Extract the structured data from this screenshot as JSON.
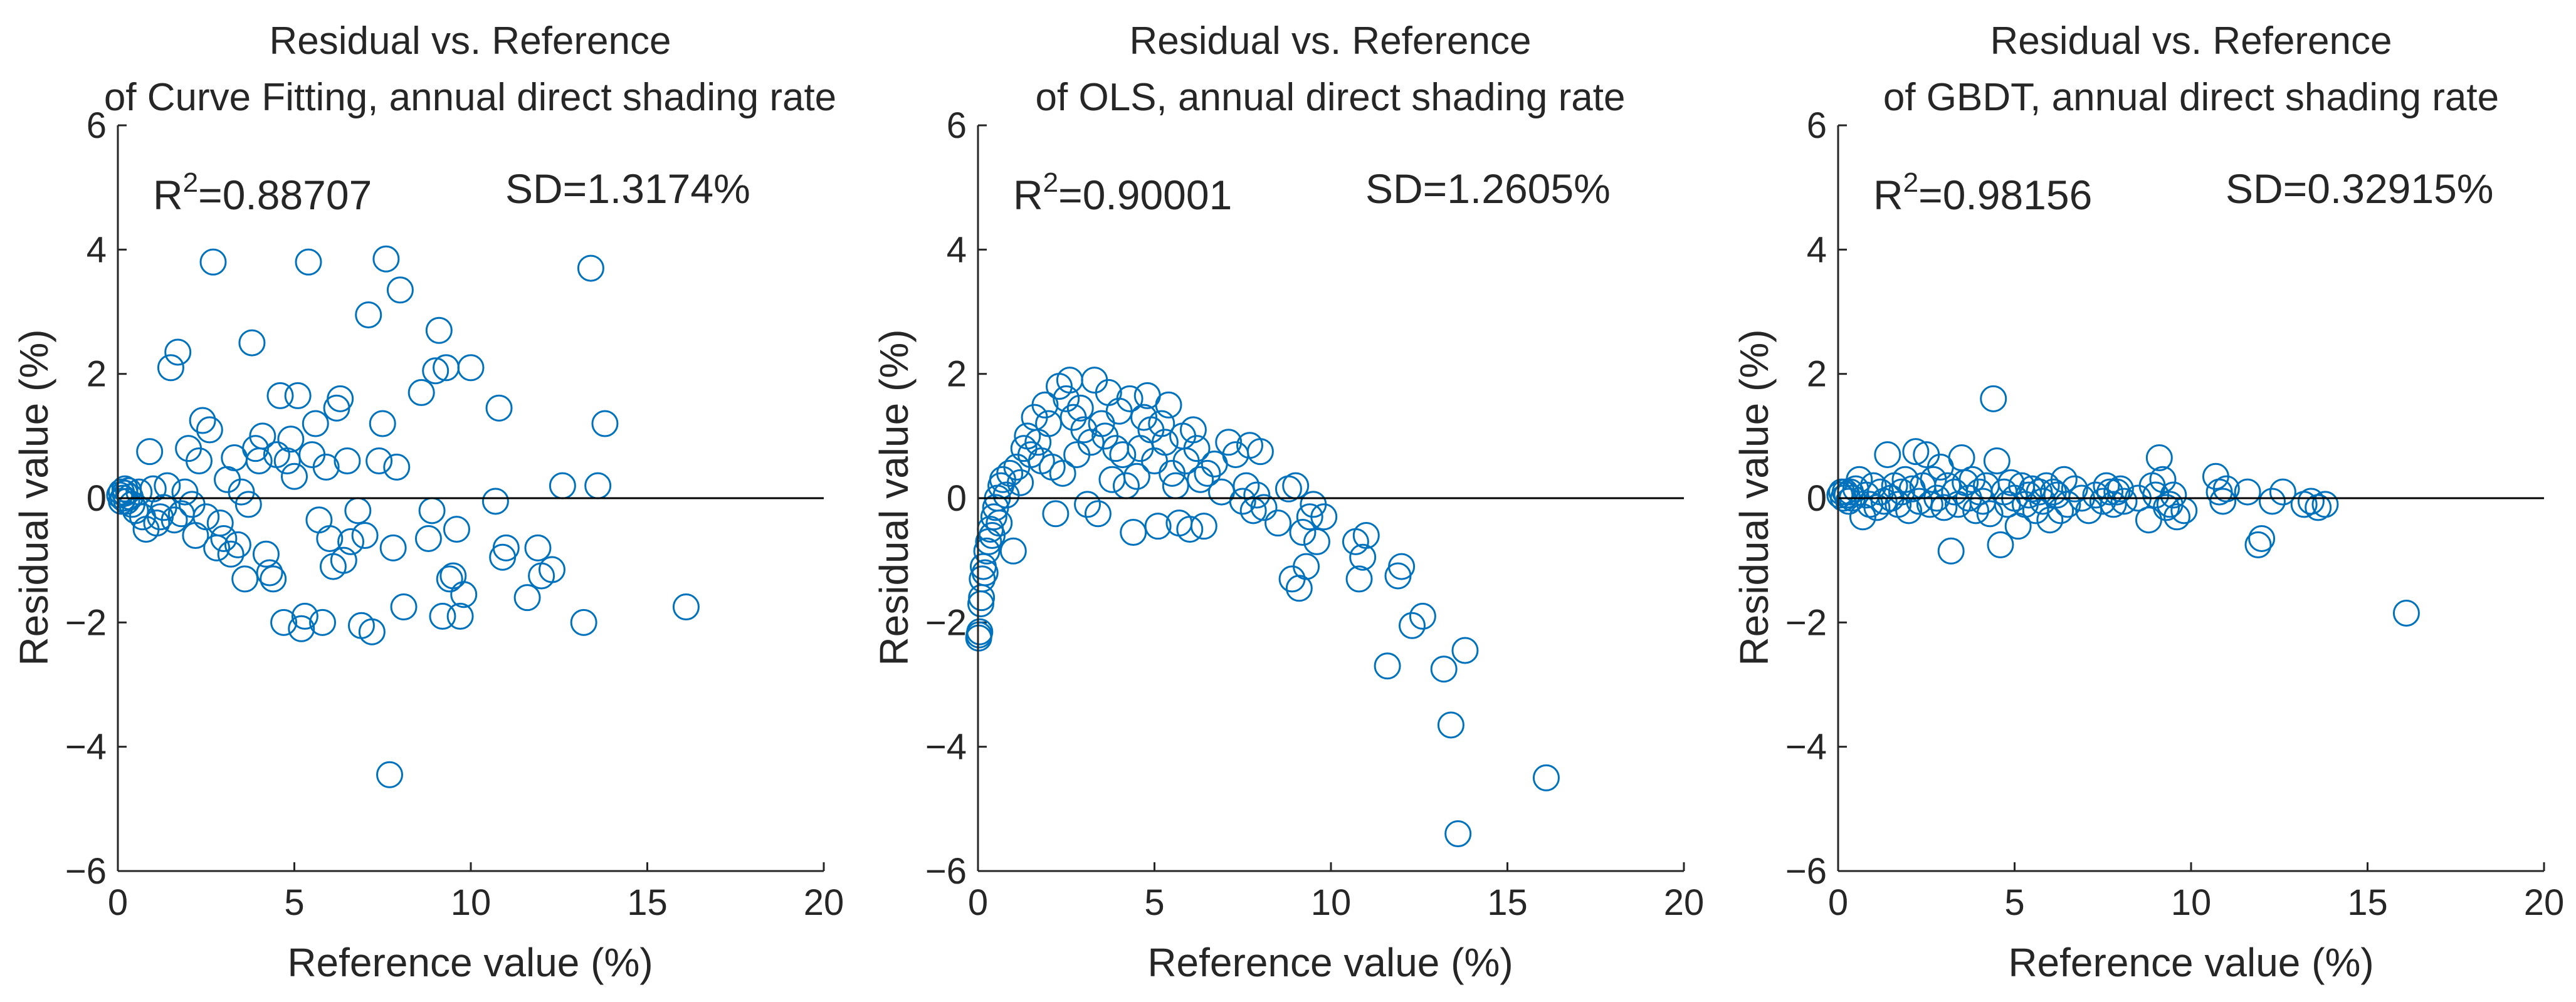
{
  "figure": {
    "marker_color": "#0072BD",
    "axis_color": "#262626",
    "zero_line_color": "#000000"
  },
  "chart_data": [
    {
      "type": "scatter",
      "title_line1": "Residual vs. Reference",
      "title_line2": "of Curve Fitting, annual direct shading rate",
      "xlabel": "Reference value (%)",
      "ylabel": "Residual value (%)",
      "xlim": [
        0,
        20
      ],
      "ylim": [
        -6,
        6
      ],
      "xticks": [
        0,
        5,
        10,
        15,
        20
      ],
      "yticks": [
        -6,
        -4,
        -2,
        0,
        2,
        4,
        6
      ],
      "xtick_labels": [
        "0",
        "5",
        "10",
        "15",
        "20"
      ],
      "ytick_labels": [
        "−6",
        "−4",
        "−2",
        "0",
        "2",
        "4",
        "6"
      ],
      "r2_label": "R",
      "r2_sup": "2",
      "r2_value": "=0.88707",
      "sd_label": "SD=1.3174%",
      "points": [
        [
          0.05,
          0.05
        ],
        [
          0.1,
          0.1
        ],
        [
          0.15,
          0.0
        ],
        [
          0.2,
          0.08
        ],
        [
          0.25,
          -0.05
        ],
        [
          0.3,
          0.12
        ],
        [
          0.35,
          0.02
        ],
        [
          0.4,
          -0.1
        ],
        [
          0.1,
          -0.05
        ],
        [
          0.2,
          0.15
        ],
        [
          0.5,
          -0.2
        ],
        [
          0.6,
          0.1
        ],
        [
          0.7,
          -0.3
        ],
        [
          0.8,
          -0.5
        ],
        [
          0.9,
          0.75
        ],
        [
          1.0,
          0.15
        ],
        [
          1.1,
          -0.4
        ],
        [
          1.2,
          -0.3
        ],
        [
          1.3,
          -0.15
        ],
        [
          1.4,
          0.2
        ],
        [
          1.5,
          2.1
        ],
        [
          1.6,
          -0.35
        ],
        [
          1.7,
          2.35
        ],
        [
          1.8,
          -0.25
        ],
        [
          1.9,
          0.1
        ],
        [
          2.0,
          0.8
        ],
        [
          2.1,
          -0.1
        ],
        [
          2.2,
          -0.6
        ],
        [
          2.3,
          0.6
        ],
        [
          2.4,
          1.25
        ],
        [
          2.5,
          -0.3
        ],
        [
          2.6,
          1.1
        ],
        [
          2.7,
          3.8
        ],
        [
          2.8,
          -0.8
        ],
        [
          2.9,
          -0.4
        ],
        [
          3.0,
          -0.65
        ],
        [
          3.1,
          0.3
        ],
        [
          3.2,
          -0.9
        ],
        [
          3.3,
          0.65
        ],
        [
          3.4,
          -0.75
        ],
        [
          3.5,
          0.1
        ],
        [
          3.6,
          -1.3
        ],
        [
          3.7,
          -0.1
        ],
        [
          3.8,
          2.5
        ],
        [
          3.9,
          0.8
        ],
        [
          4.0,
          0.6
        ],
        [
          4.1,
          1.0
        ],
        [
          4.2,
          -0.9
        ],
        [
          4.3,
          -1.2
        ],
        [
          4.4,
          -1.3
        ],
        [
          4.5,
          0.7
        ],
        [
          4.6,
          1.65
        ],
        [
          4.7,
          -2.0
        ],
        [
          4.8,
          0.6
        ],
        [
          4.9,
          0.95
        ],
        [
          5.0,
          0.35
        ],
        [
          5.1,
          1.65
        ],
        [
          5.2,
          -2.1
        ],
        [
          5.3,
          -1.9
        ],
        [
          5.4,
          3.8
        ],
        [
          5.5,
          0.7
        ],
        [
          5.6,
          1.2
        ],
        [
          5.7,
          -0.35
        ],
        [
          5.8,
          -2.0
        ],
        [
          5.9,
          0.5
        ],
        [
          6.0,
          -0.65
        ],
        [
          6.1,
          -1.1
        ],
        [
          6.2,
          1.45
        ],
        [
          6.3,
          1.6
        ],
        [
          6.4,
          -1.0
        ],
        [
          6.5,
          0.6
        ],
        [
          6.6,
          -0.7
        ],
        [
          6.8,
          -0.2
        ],
        [
          6.9,
          -2.05
        ],
        [
          7.0,
          -0.6
        ],
        [
          7.1,
          2.95
        ],
        [
          7.2,
          -2.15
        ],
        [
          7.4,
          0.6
        ],
        [
          7.5,
          1.2
        ],
        [
          7.6,
          3.85
        ],
        [
          7.7,
          -4.45
        ],
        [
          7.8,
          -0.8
        ],
        [
          7.9,
          0.5
        ],
        [
          8.0,
          3.35
        ],
        [
          8.1,
          -1.75
        ],
        [
          8.6,
          1.7
        ],
        [
          8.8,
          -0.65
        ],
        [
          8.9,
          -0.2
        ],
        [
          9.0,
          2.05
        ],
        [
          9.1,
          2.7
        ],
        [
          9.2,
          -1.9
        ],
        [
          9.3,
          2.1
        ],
        [
          9.4,
          -1.3
        ],
        [
          9.5,
          -1.25
        ],
        [
          9.6,
          -0.5
        ],
        [
          9.7,
          -1.9
        ],
        [
          9.8,
          -1.55
        ],
        [
          10.0,
          2.1
        ],
        [
          10.7,
          -0.05
        ],
        [
          10.8,
          1.45
        ],
        [
          10.9,
          -0.95
        ],
        [
          11.0,
          -0.8
        ],
        [
          11.6,
          -1.6
        ],
        [
          11.9,
          -0.8
        ],
        [
          12.0,
          -1.25
        ],
        [
          12.3,
          -1.15
        ],
        [
          12.6,
          0.2
        ],
        [
          13.2,
          -2.0
        ],
        [
          13.4,
          3.7
        ],
        [
          13.6,
          0.2
        ],
        [
          13.8,
          1.2
        ],
        [
          16.1,
          -1.75
        ]
      ]
    },
    {
      "type": "scatter",
      "title_line1": "Residual vs. Reference",
      "title_line2": "of OLS, annual direct shading rate",
      "xlabel": "Reference value (%)",
      "ylabel": "Residual value (%)",
      "xlim": [
        0,
        20
      ],
      "ylim": [
        -6,
        6
      ],
      "xticks": [
        0,
        5,
        10,
        15,
        20
      ],
      "yticks": [
        -6,
        -4,
        -2,
        0,
        2,
        4,
        6
      ],
      "xtick_labels": [
        "0",
        "5",
        "10",
        "15",
        "20"
      ],
      "ytick_labels": [
        "−6",
        "−4",
        "−2",
        "0",
        "2",
        "4",
        "6"
      ],
      "r2_label": "R",
      "r2_sup": "2",
      "r2_value": "=0.90001",
      "sd_label": "SD=1.2605%",
      "points": [
        [
          0.02,
          -2.25
        ],
        [
          0.03,
          -2.2
        ],
        [
          0.05,
          -2.15
        ],
        [
          0.08,
          -1.7
        ],
        [
          0.1,
          -1.6
        ],
        [
          0.12,
          -1.3
        ],
        [
          0.15,
          -1.1
        ],
        [
          0.2,
          -1.2
        ],
        [
          0.25,
          -0.85
        ],
        [
          0.3,
          -0.7
        ],
        [
          0.35,
          -0.5
        ],
        [
          0.4,
          -0.6
        ],
        [
          0.45,
          -0.3
        ],
        [
          0.5,
          -0.15
        ],
        [
          0.55,
          0.0
        ],
        [
          0.6,
          -0.4
        ],
        [
          0.65,
          0.2
        ],
        [
          0.7,
          0.3
        ],
        [
          0.8,
          0.05
        ],
        [
          0.9,
          0.4
        ],
        [
          1.0,
          -0.85
        ],
        [
          1.1,
          0.5
        ],
        [
          1.2,
          0.25
        ],
        [
          1.3,
          0.8
        ],
        [
          1.4,
          1.0
        ],
        [
          1.5,
          0.7
        ],
        [
          1.6,
          1.3
        ],
        [
          1.7,
          0.9
        ],
        [
          1.8,
          0.6
        ],
        [
          1.9,
          1.5
        ],
        [
          2.0,
          1.2
        ],
        [
          2.1,
          0.5
        ],
        [
          2.2,
          -0.25
        ],
        [
          2.3,
          1.8
        ],
        [
          2.4,
          0.4
        ],
        [
          2.5,
          1.6
        ],
        [
          2.6,
          1.9
        ],
        [
          2.7,
          1.3
        ],
        [
          2.8,
          0.7
        ],
        [
          2.9,
          1.45
        ],
        [
          3.0,
          1.1
        ],
        [
          3.1,
          -0.1
        ],
        [
          3.2,
          0.9
        ],
        [
          3.3,
          1.9
        ],
        [
          3.4,
          -0.25
        ],
        [
          3.5,
          1.2
        ],
        [
          3.6,
          1.0
        ],
        [
          3.7,
          1.7
        ],
        [
          3.8,
          0.3
        ],
        [
          3.9,
          0.8
        ],
        [
          4.0,
          1.4
        ],
        [
          4.1,
          0.7
        ],
        [
          4.2,
          0.2
        ],
        [
          4.3,
          1.6
        ],
        [
          4.4,
          -0.55
        ],
        [
          4.5,
          0.35
        ],
        [
          4.6,
          0.8
        ],
        [
          4.7,
          1.3
        ],
        [
          4.8,
          1.65
        ],
        [
          4.9,
          1.1
        ],
        [
          5.0,
          0.6
        ],
        [
          5.1,
          -0.45
        ],
        [
          5.2,
          1.2
        ],
        [
          5.3,
          0.9
        ],
        [
          5.4,
          1.5
        ],
        [
          5.5,
          0.4
        ],
        [
          5.6,
          0.2
        ],
        [
          5.7,
          -0.4
        ],
        [
          5.8,
          1.0
        ],
        [
          5.9,
          0.6
        ],
        [
          6.0,
          -0.5
        ],
        [
          6.1,
          1.1
        ],
        [
          6.2,
          0.8
        ],
        [
          6.3,
          0.3
        ],
        [
          6.4,
          -0.45
        ],
        [
          6.5,
          0.4
        ],
        [
          6.7,
          0.55
        ],
        [
          6.9,
          0.1
        ],
        [
          7.1,
          0.9
        ],
        [
          7.3,
          0.7
        ],
        [
          7.5,
          -0.05
        ],
        [
          7.6,
          0.2
        ],
        [
          7.7,
          0.85
        ],
        [
          7.8,
          -0.2
        ],
        [
          7.9,
          0.05
        ],
        [
          8.0,
          0.75
        ],
        [
          8.1,
          -0.15
        ],
        [
          8.5,
          -0.4
        ],
        [
          8.8,
          0.15
        ],
        [
          8.9,
          -1.3
        ],
        [
          9.0,
          0.2
        ],
        [
          9.1,
          -1.45
        ],
        [
          9.2,
          -0.55
        ],
        [
          9.3,
          -1.1
        ],
        [
          9.4,
          -0.3
        ],
        [
          9.5,
          -0.1
        ],
        [
          9.6,
          -0.7
        ],
        [
          9.8,
          -0.3
        ],
        [
          10.7,
          -0.7
        ],
        [
          10.8,
          -1.3
        ],
        [
          10.9,
          -0.95
        ],
        [
          11.0,
          -0.6
        ],
        [
          11.6,
          -2.7
        ],
        [
          11.9,
          -1.25
        ],
        [
          12.0,
          -1.1
        ],
        [
          12.3,
          -2.05
        ],
        [
          12.6,
          -1.9
        ],
        [
          13.2,
          -2.75
        ],
        [
          13.4,
          -3.65
        ],
        [
          13.6,
          -5.4
        ],
        [
          13.8,
          -2.45
        ],
        [
          16.1,
          -4.5
        ]
      ]
    },
    {
      "type": "scatter",
      "title_line1": "Residual vs. Reference",
      "title_line2": "of GBDT, annual direct shading rate",
      "xlabel": "Reference value (%)",
      "ylabel": "Residual value (%)",
      "xlim": [
        0,
        20
      ],
      "ylim": [
        -6,
        6
      ],
      "xticks": [
        0,
        5,
        10,
        15,
        20
      ],
      "yticks": [
        -6,
        -4,
        -2,
        0,
        2,
        4,
        6
      ],
      "xtick_labels": [
        "0",
        "5",
        "10",
        "15",
        "20"
      ],
      "ytick_labels": [
        "−6",
        "−4",
        "−2",
        "0",
        "2",
        "4",
        "6"
      ],
      "r2_label": "R",
      "r2_sup": "2",
      "r2_value": "=0.98156",
      "sd_label": "SD=0.32915%",
      "points": [
        [
          0.05,
          0.05
        ],
        [
          0.1,
          0.1
        ],
        [
          0.15,
          0.0
        ],
        [
          0.2,
          0.1
        ],
        [
          0.25,
          0.05
        ],
        [
          0.3,
          -0.05
        ],
        [
          0.35,
          0.1
        ],
        [
          0.4,
          0.0
        ],
        [
          0.5,
          0.15
        ],
        [
          0.6,
          0.3
        ],
        [
          0.7,
          -0.3
        ],
        [
          0.8,
          0.05
        ],
        [
          0.9,
          -0.1
        ],
        [
          1.0,
          0.2
        ],
        [
          1.1,
          -0.15
        ],
        [
          1.2,
          0.1
        ],
        [
          1.3,
          -0.05
        ],
        [
          1.4,
          0.7
        ],
        [
          1.5,
          0.0
        ],
        [
          1.6,
          0.2
        ],
        [
          1.7,
          -0.1
        ],
        [
          1.8,
          0.1
        ],
        [
          1.9,
          0.3
        ],
        [
          2.0,
          -0.2
        ],
        [
          2.1,
          0.15
        ],
        [
          2.2,
          0.75
        ],
        [
          2.3,
          -0.05
        ],
        [
          2.4,
          0.2
        ],
        [
          2.5,
          0.7
        ],
        [
          2.6,
          -0.1
        ],
        [
          2.7,
          0.3
        ],
        [
          2.8,
          0.0
        ],
        [
          2.9,
          0.5
        ],
        [
          3.0,
          -0.15
        ],
        [
          3.1,
          0.2
        ],
        [
          3.2,
          -0.85
        ],
        [
          3.3,
          0.1
        ],
        [
          3.4,
          -0.1
        ],
        [
          3.5,
          0.65
        ],
        [
          3.6,
          0.25
        ],
        [
          3.7,
          0.0
        ],
        [
          3.8,
          0.3
        ],
        [
          3.9,
          -0.2
        ],
        [
          4.0,
          0.1
        ],
        [
          4.1,
          -0.05
        ],
        [
          4.2,
          0.2
        ],
        [
          4.3,
          -0.25
        ],
        [
          4.4,
          1.6
        ],
        [
          4.5,
          0.6
        ],
        [
          4.6,
          -0.75
        ],
        [
          4.7,
          0.1
        ],
        [
          4.8,
          -0.1
        ],
        [
          4.9,
          0.25
        ],
        [
          5.0,
          0.0
        ],
        [
          5.1,
          -0.45
        ],
        [
          5.2,
          0.2
        ],
        [
          5.3,
          -0.1
        ],
        [
          5.4,
          0.05
        ],
        [
          5.5,
          0.15
        ],
        [
          5.6,
          -0.2
        ],
        [
          5.7,
          0.1
        ],
        [
          5.8,
          -0.05
        ],
        [
          5.9,
          0.2
        ],
        [
          6.0,
          -0.35
        ],
        [
          6.1,
          0.1
        ],
        [
          6.2,
          0.05
        ],
        [
          6.3,
          -0.2
        ],
        [
          6.4,
          0.3
        ],
        [
          6.5,
          -0.1
        ],
        [
          6.7,
          0.15
        ],
        [
          6.9,
          0.0
        ],
        [
          7.1,
          -0.2
        ],
        [
          7.3,
          0.05
        ],
        [
          7.5,
          -0.05
        ],
        [
          7.6,
          0.2
        ],
        [
          7.7,
          0.1
        ],
        [
          7.8,
          -0.1
        ],
        [
          7.9,
          0.1
        ],
        [
          8.0,
          0.15
        ],
        [
          8.1,
          -0.05
        ],
        [
          8.5,
          0.0
        ],
        [
          8.8,
          -0.35
        ],
        [
          8.9,
          0.2
        ],
        [
          9.0,
          0.05
        ],
        [
          9.1,
          0.65
        ],
        [
          9.2,
          0.3
        ],
        [
          9.3,
          -0.15
        ],
        [
          9.4,
          -0.1
        ],
        [
          9.5,
          0.05
        ],
        [
          9.6,
          -0.3
        ],
        [
          9.8,
          -0.2
        ],
        [
          10.7,
          0.35
        ],
        [
          10.8,
          0.1
        ],
        [
          10.9,
          -0.05
        ],
        [
          11.0,
          0.15
        ],
        [
          11.6,
          0.1
        ],
        [
          11.9,
          -0.75
        ],
        [
          12.0,
          -0.65
        ],
        [
          12.3,
          -0.05
        ],
        [
          12.6,
          0.1
        ],
        [
          13.2,
          -0.1
        ],
        [
          13.4,
          -0.05
        ],
        [
          13.6,
          -0.15
        ],
        [
          13.8,
          -0.1
        ],
        [
          16.1,
          -1.85
        ]
      ]
    }
  ]
}
